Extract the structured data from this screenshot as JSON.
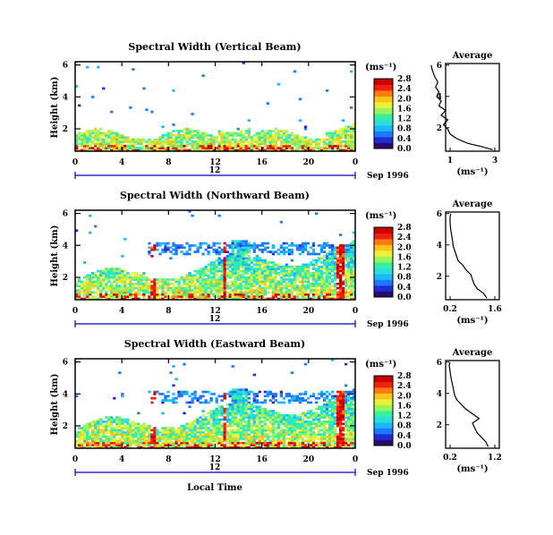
{
  "colorscale": [
    "#2a0a6e",
    "#1f2bd6",
    "#1e78ff",
    "#19b8ff",
    "#28e0d8",
    "#36f0a0",
    "#9af55a",
    "#e8f23a",
    "#ffc21a",
    "#ff7a10",
    "#f02010",
    "#c80000"
  ],
  "chart_data": [
    {
      "type": "heatmap",
      "title": "Spectral Width (Vertical Beam)",
      "ylabel": "Height (km)",
      "x_ticks": [
        "0",
        "4",
        "8",
        "12",
        "16",
        "20",
        "0"
      ],
      "x_range": [
        0,
        24
      ],
      "y_ticks": [
        "2",
        "4",
        "6"
      ],
      "y_range": [
        0.6,
        6.2
      ],
      "date_label": "Sep 1996",
      "day_marker": "12",
      "colorbar": {
        "unit": "(ms⁻¹)",
        "ticks": [
          "0.0",
          "0.4",
          "0.8",
          "1.2",
          "1.6",
          "2.0",
          "2.4",
          "2.8"
        ]
      },
      "profile": {
        "title": "Average",
        "x_ticks": [
          "1",
          "3"
        ],
        "xlabel": "(ms⁻¹)",
        "y_ticks": [
          "2",
          "4",
          "6"
        ],
        "points": [
          [
            2.9,
            0.6
          ],
          [
            2.4,
            0.8
          ],
          [
            1.8,
            1.0
          ],
          [
            1.3,
            1.3
          ],
          [
            1.0,
            1.6
          ],
          [
            0.9,
            1.9
          ],
          [
            0.7,
            2.2
          ],
          [
            0.9,
            2.5
          ],
          [
            0.6,
            2.8
          ],
          [
            0.8,
            3.1
          ],
          [
            0.5,
            3.4
          ],
          [
            0.6,
            3.7
          ],
          [
            0.4,
            4.0
          ],
          [
            0.5,
            4.3
          ],
          [
            0.35,
            4.6
          ],
          [
            0.45,
            4.9
          ],
          [
            0.3,
            5.3
          ],
          [
            0.2,
            5.7
          ],
          [
            0.15,
            6.0
          ]
        ]
      }
    },
    {
      "type": "heatmap",
      "title": "Spectral Width (Northward Beam)",
      "ylabel": "Height (km)",
      "x_ticks": [
        "0",
        "4",
        "8",
        "12",
        "16",
        "20",
        "0"
      ],
      "x_range": [
        0,
        24
      ],
      "y_ticks": [
        "2",
        "4",
        "6"
      ],
      "y_range": [
        0.6,
        6.2
      ],
      "date_label": "Sep 1996",
      "day_marker": "12",
      "colorbar": {
        "unit": "(ms⁻¹)",
        "ticks": [
          "0.0",
          "0.4",
          "0.8",
          "1.2",
          "1.6",
          "2.0",
          "2.4",
          "2.8"
        ]
      },
      "profile": {
        "title": "Average",
        "x_ticks": [
          "0.2",
          "1.6"
        ],
        "xlabel": "(ms⁻¹)",
        "y_ticks": [
          "2",
          "4",
          "6"
        ],
        "points": [
          [
            1.35,
            0.6
          ],
          [
            1.25,
            0.9
          ],
          [
            1.05,
            1.2
          ],
          [
            0.95,
            1.5
          ],
          [
            0.9,
            1.8
          ],
          [
            0.85,
            2.1
          ],
          [
            0.7,
            2.4
          ],
          [
            0.6,
            2.7
          ],
          [
            0.45,
            3.0
          ],
          [
            0.4,
            3.3
          ],
          [
            0.35,
            3.6
          ],
          [
            0.3,
            3.9
          ],
          [
            0.28,
            4.2
          ],
          [
            0.25,
            4.6
          ],
          [
            0.22,
            5.0
          ],
          [
            0.2,
            5.4
          ],
          [
            0.2,
            5.8
          ],
          [
            0.22,
            6.0
          ]
        ]
      }
    },
    {
      "type": "heatmap",
      "title": "Spectral Width (Eastward Beam)",
      "ylabel": "Height (km)",
      "xlabel": "Local Time",
      "x_ticks": [
        "0",
        "4",
        "8",
        "12",
        "16",
        "20",
        "0"
      ],
      "x_range": [
        0,
        24
      ],
      "y_ticks": [
        "2",
        "4",
        "6"
      ],
      "y_range": [
        0.6,
        6.2
      ],
      "date_label": "Sep 1996",
      "day_marker": "12",
      "colorbar": {
        "unit": "(ms⁻¹)",
        "ticks": [
          "0.0",
          "0.4",
          "0.8",
          "1.2",
          "1.6",
          "2.0",
          "2.4",
          "2.8"
        ]
      },
      "profile": {
        "title": "Average",
        "x_ticks": [
          "0.2",
          "1.2"
        ],
        "xlabel": "(ms⁻¹)",
        "y_ticks": [
          "2",
          "4",
          "6"
        ],
        "points": [
          [
            1.05,
            0.6
          ],
          [
            1.0,
            0.9
          ],
          [
            0.9,
            1.2
          ],
          [
            0.8,
            1.5
          ],
          [
            0.75,
            1.8
          ],
          [
            0.7,
            2.1
          ],
          [
            0.85,
            2.4
          ],
          [
            0.7,
            2.7
          ],
          [
            0.55,
            3.0
          ],
          [
            0.45,
            3.3
          ],
          [
            0.35,
            3.6
          ],
          [
            0.3,
            3.9
          ],
          [
            0.28,
            4.2
          ],
          [
            0.25,
            4.6
          ],
          [
            0.22,
            5.0
          ],
          [
            0.2,
            5.4
          ],
          [
            0.18,
            5.8
          ],
          [
            0.2,
            6.0
          ]
        ]
      }
    }
  ]
}
